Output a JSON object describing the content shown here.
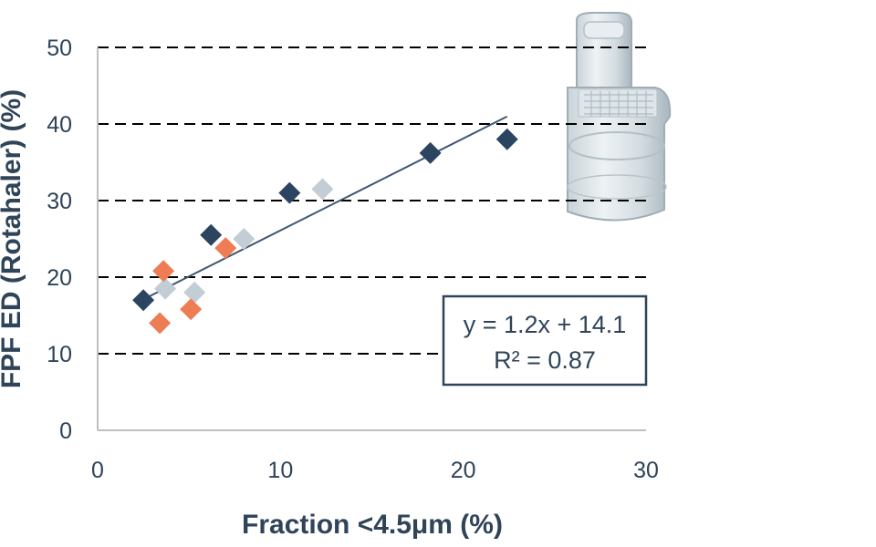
{
  "chart_data": {
    "type": "scatter",
    "xlabel": "Fraction <4.5μm (%)",
    "ylabel": "FPF ED (Rotahaler) (%)",
    "xlim": [
      0,
      30
    ],
    "ylim": [
      0,
      50
    ],
    "x_ticks": [
      0,
      10,
      20,
      30
    ],
    "y_ticks": [
      0,
      10,
      20,
      30,
      40,
      50
    ],
    "grid": "horizontal dashed",
    "series": [
      {
        "color": "#2b4560",
        "points": [
          [
            2.5,
            17.0
          ],
          [
            6.2,
            25.5
          ],
          [
            10.5,
            31.0
          ],
          [
            18.2,
            36.2
          ],
          [
            22.4,
            38.0
          ]
        ]
      },
      {
        "color": "#c3cdd6",
        "points": [
          [
            3.7,
            18.5
          ],
          [
            5.3,
            18.0
          ],
          [
            8.0,
            25.0
          ],
          [
            12.3,
            31.5
          ]
        ]
      },
      {
        "color": "#ef7d54",
        "points": [
          [
            3.4,
            14.0
          ],
          [
            3.6,
            20.8
          ],
          [
            5.1,
            15.8
          ],
          [
            7.0,
            23.8
          ]
        ]
      }
    ],
    "trendline": {
      "slope": 1.2,
      "intercept": 14.1,
      "x_range": [
        2.5,
        22.4
      ],
      "color": "#3e5770"
    },
    "annotation": {
      "equation": "y = 1.2x + 14.1",
      "r2": "R² = 0.87"
    },
    "image": "inhaler-device"
  }
}
